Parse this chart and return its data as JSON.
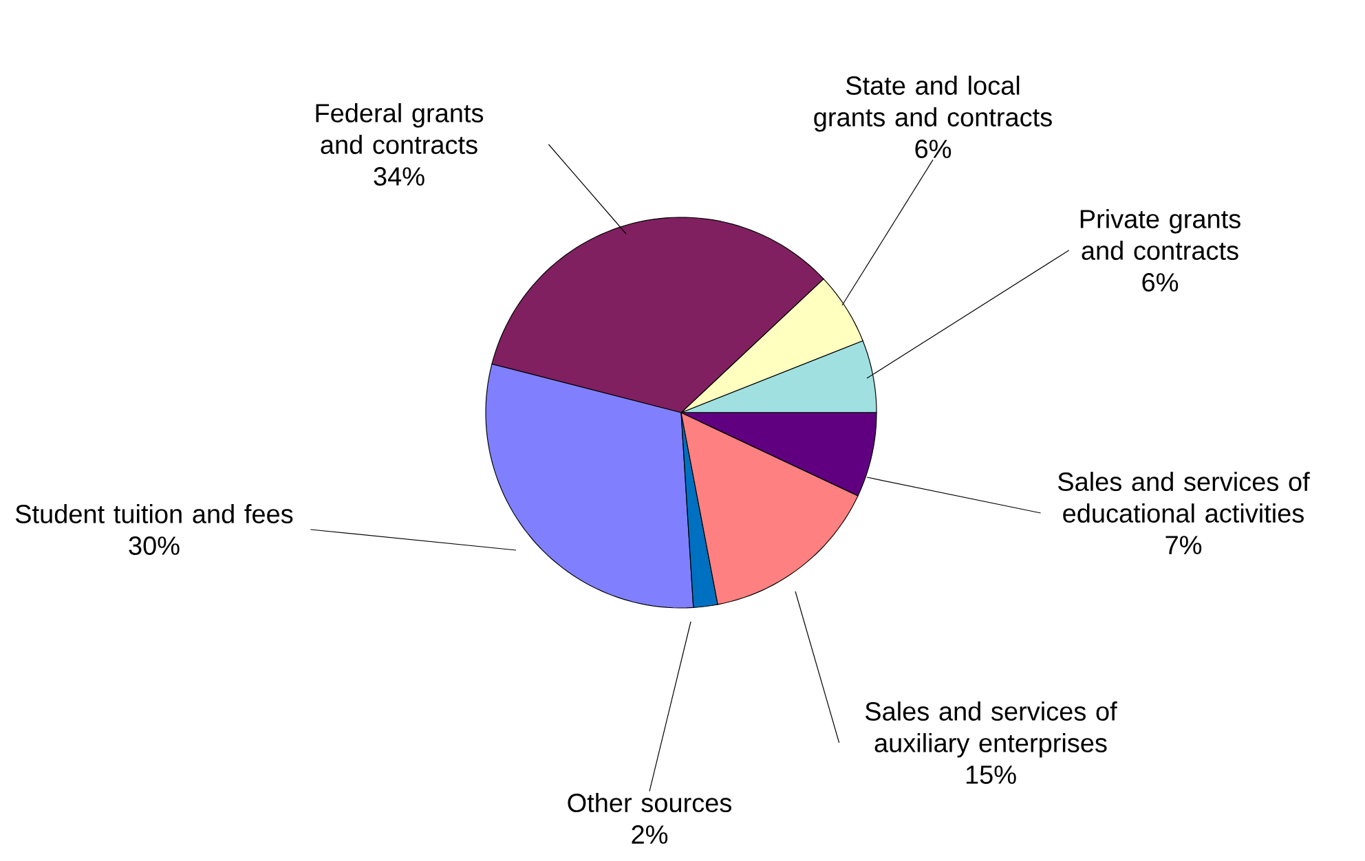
{
  "chart_data": {
    "type": "pie",
    "categories": [
      "Private grants and contracts",
      "State and local grants and contracts",
      "Federal grants and contracts",
      "Student tuition and fees",
      "Other sources",
      "Sales and services of auxiliary enterprises",
      "Sales and services of educational activities"
    ],
    "values": [
      6,
      6,
      34,
      30,
      2,
      15,
      7
    ],
    "colors": [
      "#a0e0e0",
      "#ffffc0",
      "#802060",
      "#8080ff",
      "#0070c0",
      "#ff8080",
      "#600080"
    ],
    "value_labels": [
      "6%",
      "6%",
      "34%",
      "30%",
      "2%",
      "15%",
      "7%"
    ]
  }
}
